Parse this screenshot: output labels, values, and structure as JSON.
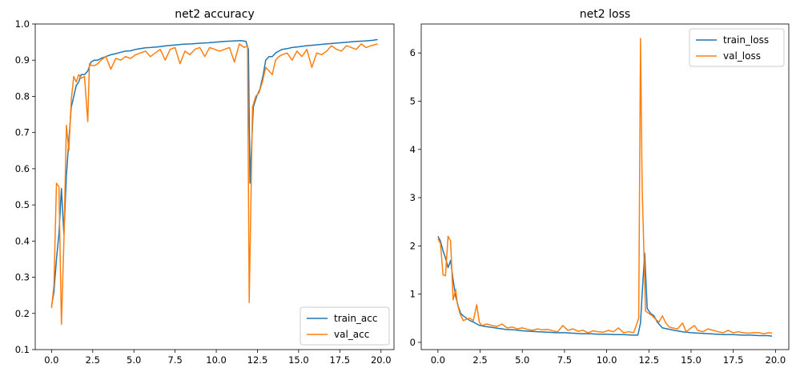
{
  "chart_data": [
    {
      "type": "line",
      "title": "net2 accuracy",
      "xlabel": "",
      "ylabel": "",
      "xlim": [
        -0.99,
        20.79
      ],
      "ylim": [
        0.1,
        1.0
      ],
      "xticks": [
        0.0,
        2.5,
        5.0,
        7.5,
        10.0,
        12.5,
        15.0,
        17.5,
        20.0
      ],
      "xtick_labels": [
        "0.0",
        "2.5",
        "5.0",
        "7.5",
        "10.0",
        "12.5",
        "15.0",
        "17.5",
        "20.0"
      ],
      "yticks": [
        0.1,
        0.2,
        0.3,
        0.4,
        0.5,
        0.6,
        0.7,
        0.8,
        0.9,
        1.0
      ],
      "ytick_labels": [
        "0.1",
        "0.2",
        "0.3",
        "0.4",
        "0.5",
        "0.6",
        "0.7",
        "0.8",
        "0.9",
        "1.0"
      ],
      "legend_position": "lower-right",
      "grid": false,
      "series": [
        {
          "name": "train_acc",
          "color": "#1f77b4",
          "x": [
            0.0,
            0.15,
            0.3,
            0.45,
            0.6,
            0.75,
            0.9,
            1.05,
            1.2,
            1.35,
            1.5,
            1.65,
            1.8,
            2.0,
            2.2,
            2.4,
            2.6,
            2.8,
            3.0,
            3.3,
            3.6,
            3.9,
            4.2,
            4.5,
            4.8,
            5.1,
            5.4,
            5.7,
            6.0,
            6.5,
            7.0,
            7.5,
            8.0,
            8.5,
            9.0,
            9.5,
            10.0,
            10.5,
            11.0,
            11.5,
            11.8,
            11.95,
            12.05,
            12.25,
            12.45,
            12.65,
            12.85,
            13.0,
            13.2,
            13.4,
            13.6,
            13.8,
            14.0,
            14.3,
            14.6,
            15.0,
            15.5,
            16.0,
            16.5,
            17.0,
            17.5,
            18.0,
            18.5,
            19.0,
            19.5,
            19.8
          ],
          "y": [
            0.22,
            0.26,
            0.35,
            0.42,
            0.545,
            0.42,
            0.58,
            0.68,
            0.77,
            0.8,
            0.83,
            0.84,
            0.86,
            0.86,
            0.87,
            0.895,
            0.9,
            0.9,
            0.905,
            0.91,
            0.915,
            0.918,
            0.922,
            0.925,
            0.926,
            0.93,
            0.932,
            0.934,
            0.935,
            0.937,
            0.94,
            0.942,
            0.944,
            0.945,
            0.947,
            0.948,
            0.95,
            0.952,
            0.953,
            0.954,
            0.952,
            0.93,
            0.56,
            0.77,
            0.8,
            0.82,
            0.86,
            0.9,
            0.91,
            0.91,
            0.92,
            0.925,
            0.93,
            0.932,
            0.935,
            0.937,
            0.94,
            0.942,
            0.944,
            0.946,
            0.948,
            0.95,
            0.952,
            0.953,
            0.955,
            0.957
          ]
        },
        {
          "name": "val_acc",
          "color": "#ff7f0e",
          "x": [
            0.0,
            0.15,
            0.3,
            0.45,
            0.6,
            0.75,
            0.9,
            1.05,
            1.2,
            1.35,
            1.5,
            1.65,
            1.8,
            2.0,
            2.2,
            2.3,
            2.45,
            2.6,
            2.8,
            3.0,
            3.3,
            3.6,
            3.9,
            4.2,
            4.5,
            4.8,
            5.1,
            5.4,
            5.7,
            6.0,
            6.3,
            6.6,
            6.9,
            7.2,
            7.5,
            7.8,
            8.1,
            8.4,
            8.7,
            9.0,
            9.3,
            9.6,
            9.9,
            10.2,
            10.5,
            10.8,
            11.1,
            11.4,
            11.7,
            11.9,
            12.0,
            12.2,
            12.4,
            12.6,
            12.8,
            13.0,
            13.2,
            13.4,
            13.6,
            13.8,
            14.0,
            14.3,
            14.6,
            14.9,
            15.2,
            15.5,
            15.8,
            16.1,
            16.4,
            16.7,
            17.0,
            17.3,
            17.6,
            17.9,
            18.2,
            18.5,
            18.8,
            19.1,
            19.4,
            19.8
          ],
          "y": [
            0.215,
            0.28,
            0.56,
            0.55,
            0.17,
            0.4,
            0.72,
            0.65,
            0.79,
            0.855,
            0.84,
            0.86,
            0.85,
            0.855,
            0.73,
            0.89,
            0.885,
            0.885,
            0.89,
            0.9,
            0.91,
            0.875,
            0.905,
            0.9,
            0.91,
            0.905,
            0.915,
            0.92,
            0.925,
            0.91,
            0.92,
            0.93,
            0.9,
            0.93,
            0.935,
            0.89,
            0.925,
            0.915,
            0.93,
            0.935,
            0.91,
            0.935,
            0.93,
            0.925,
            0.93,
            0.935,
            0.895,
            0.945,
            0.935,
            0.94,
            0.23,
            0.77,
            0.8,
            0.81,
            0.84,
            0.88,
            0.87,
            0.86,
            0.9,
            0.91,
            0.915,
            0.92,
            0.9,
            0.925,
            0.91,
            0.93,
            0.88,
            0.92,
            0.915,
            0.925,
            0.94,
            0.93,
            0.925,
            0.94,
            0.935,
            0.93,
            0.945,
            0.935,
            0.94,
            0.945
          ]
        }
      ]
    },
    {
      "type": "line",
      "title": "net2 loss",
      "xlabel": "",
      "ylabel": "",
      "xlim": [
        -0.99,
        20.79
      ],
      "ylim": [
        -0.15,
        6.6
      ],
      "xticks": [
        0.0,
        2.5,
        5.0,
        7.5,
        10.0,
        12.5,
        15.0,
        17.5,
        20.0
      ],
      "xtick_labels": [
        "0.0",
        "2.5",
        "5.0",
        "7.5",
        "10.0",
        "12.5",
        "15.0",
        "17.5",
        "20.0"
      ],
      "yticks": [
        0,
        1,
        2,
        3,
        4,
        5,
        6
      ],
      "ytick_labels": [
        "0",
        "1",
        "2",
        "3",
        "4",
        "5",
        "6"
      ],
      "legend_position": "upper-right",
      "grid": false,
      "series": [
        {
          "name": "train_loss",
          "color": "#1f77b4",
          "x": [
            0.0,
            0.15,
            0.3,
            0.45,
            0.6,
            0.75,
            0.9,
            1.05,
            1.2,
            1.35,
            1.5,
            1.7,
            1.9,
            2.1,
            2.3,
            2.5,
            2.8,
            3.2,
            3.6,
            4.0,
            4.5,
            5.0,
            5.5,
            6.0,
            6.5,
            7.0,
            7.5,
            8.0,
            8.5,
            9.0,
            9.5,
            10.0,
            10.5,
            11.0,
            11.5,
            11.85,
            12.0,
            12.1,
            12.25,
            12.4,
            12.6,
            12.8,
            13.0,
            13.3,
            13.6,
            14.0,
            14.5,
            15.0,
            15.5,
            16.0,
            16.5,
            17.0,
            17.5,
            18.0,
            18.5,
            19.0,
            19.5,
            19.8
          ],
          "y": [
            2.2,
            2.1,
            1.9,
            1.75,
            1.55,
            1.7,
            1.3,
            0.95,
            0.75,
            0.6,
            0.55,
            0.5,
            0.45,
            0.42,
            0.38,
            0.35,
            0.33,
            0.31,
            0.29,
            0.27,
            0.26,
            0.24,
            0.23,
            0.22,
            0.21,
            0.2,
            0.2,
            0.19,
            0.18,
            0.18,
            0.17,
            0.17,
            0.16,
            0.16,
            0.15,
            0.15,
            0.4,
            1.0,
            1.85,
            0.7,
            0.6,
            0.55,
            0.42,
            0.3,
            0.28,
            0.25,
            0.22,
            0.2,
            0.19,
            0.18,
            0.17,
            0.16,
            0.16,
            0.15,
            0.15,
            0.14,
            0.14,
            0.13
          ]
        },
        {
          "name": "val_loss",
          "color": "#ff7f0e",
          "x": [
            0.0,
            0.15,
            0.3,
            0.45,
            0.6,
            0.75,
            0.9,
            1.05,
            1.15,
            1.3,
            1.5,
            1.7,
            1.9,
            2.1,
            2.3,
            2.45,
            2.6,
            2.9,
            3.2,
            3.5,
            3.8,
            4.1,
            4.4,
            4.7,
            5.0,
            5.3,
            5.6,
            5.9,
            6.2,
            6.5,
            6.8,
            7.1,
            7.4,
            7.7,
            8.0,
            8.3,
            8.6,
            8.9,
            9.2,
            9.5,
            9.8,
            10.1,
            10.4,
            10.7,
            11.0,
            11.3,
            11.6,
            11.9,
            12.0,
            12.1,
            12.3,
            12.5,
            12.7,
            12.9,
            13.1,
            13.3,
            13.5,
            13.7,
            13.9,
            14.2,
            14.5,
            14.7,
            15.0,
            15.2,
            15.4,
            15.7,
            16.0,
            16.3,
            16.6,
            16.9,
            17.2,
            17.5,
            17.8,
            18.1,
            18.4,
            18.7,
            19.0,
            19.3,
            19.6,
            19.8
          ],
          "y": [
            2.15,
            2.05,
            1.4,
            1.38,
            2.2,
            2.1,
            0.88,
            1.1,
            0.8,
            0.6,
            0.45,
            0.48,
            0.5,
            0.45,
            0.78,
            0.42,
            0.35,
            0.38,
            0.35,
            0.33,
            0.38,
            0.3,
            0.32,
            0.28,
            0.3,
            0.27,
            0.25,
            0.28,
            0.26,
            0.27,
            0.24,
            0.22,
            0.35,
            0.25,
            0.28,
            0.23,
            0.25,
            0.2,
            0.24,
            0.22,
            0.21,
            0.25,
            0.22,
            0.3,
            0.2,
            0.22,
            0.2,
            0.5,
            6.3,
            3.2,
            0.65,
            0.6,
            0.55,
            0.48,
            0.42,
            0.55,
            0.4,
            0.32,
            0.3,
            0.28,
            0.4,
            0.22,
            0.3,
            0.35,
            0.25,
            0.22,
            0.28,
            0.25,
            0.22,
            0.2,
            0.25,
            0.2,
            0.22,
            0.2,
            0.19,
            0.2,
            0.2,
            0.18,
            0.2,
            0.19
          ]
        }
      ]
    }
  ]
}
